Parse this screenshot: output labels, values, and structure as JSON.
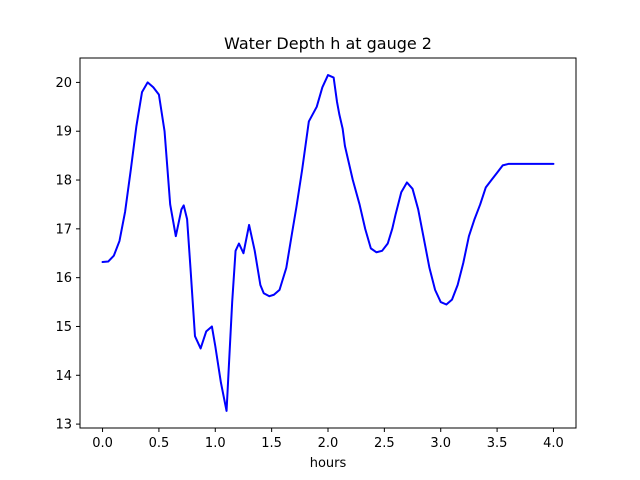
{
  "chart_data": {
    "type": "line",
    "title": "Water Depth h at gauge 2",
    "xlabel": "hours",
    "ylabel": "",
    "xlim": [
      -0.2,
      4.2
    ],
    "ylim": [
      12.92,
      20.5
    ],
    "xticks": [
      0.0,
      0.5,
      1.0,
      1.5,
      2.0,
      2.5,
      3.0,
      3.5,
      4.0
    ],
    "xtick_labels": [
      "0.0",
      "0.5",
      "1.0",
      "1.5",
      "2.0",
      "2.5",
      "3.0",
      "3.5",
      "4.0"
    ],
    "yticks": [
      13,
      14,
      15,
      16,
      17,
      18,
      19,
      20
    ],
    "ytick_labels": [
      "13",
      "14",
      "15",
      "16",
      "17",
      "18",
      "19",
      "20"
    ],
    "grid": false,
    "series": [
      {
        "color": "#0000ff",
        "x": [
          0.0,
          0.05,
          0.1,
          0.15,
          0.2,
          0.25,
          0.3,
          0.35,
          0.4,
          0.45,
          0.5,
          0.55,
          0.6,
          0.65,
          0.7,
          0.72,
          0.75,
          0.78,
          0.82,
          0.87,
          0.92,
          0.97,
          1.0,
          1.05,
          1.1,
          1.15,
          1.18,
          1.21,
          1.25,
          1.3,
          1.35,
          1.4,
          1.43,
          1.48,
          1.52,
          1.57,
          1.63,
          1.68,
          1.72,
          1.77,
          1.83,
          1.9,
          1.95,
          2.0,
          2.05,
          2.08,
          2.1,
          2.13,
          2.15,
          2.18,
          2.22,
          2.28,
          2.33,
          2.38,
          2.43,
          2.48,
          2.53,
          2.57,
          2.6,
          2.65,
          2.7,
          2.75,
          2.8,
          2.85,
          2.9,
          2.95,
          3.0,
          3.05,
          3.1,
          3.15,
          3.2,
          3.25,
          3.3,
          3.35,
          3.4,
          3.45,
          3.5,
          3.55,
          3.6,
          3.65,
          3.7,
          3.75,
          3.8,
          3.85,
          3.9,
          3.95,
          4.0
        ],
        "y": [
          16.32,
          16.33,
          16.45,
          16.75,
          17.35,
          18.2,
          19.1,
          19.8,
          20.0,
          19.9,
          19.75,
          19.0,
          17.5,
          16.85,
          17.4,
          17.48,
          17.2,
          16.2,
          14.8,
          14.55,
          14.9,
          15.0,
          14.6,
          13.85,
          13.27,
          15.5,
          16.55,
          16.7,
          16.5,
          17.08,
          16.55,
          15.85,
          15.68,
          15.62,
          15.65,
          15.75,
          16.2,
          16.9,
          17.45,
          18.2,
          19.2,
          19.5,
          19.9,
          20.15,
          20.1,
          19.6,
          19.35,
          19.05,
          18.7,
          18.4,
          18.0,
          17.5,
          17.0,
          16.6,
          16.52,
          16.55,
          16.7,
          17.0,
          17.3,
          17.75,
          17.95,
          17.82,
          17.4,
          16.8,
          16.2,
          15.75,
          15.5,
          15.45,
          15.55,
          15.85,
          16.3,
          16.85,
          17.2,
          17.5,
          17.85,
          18.0,
          18.15,
          18.3,
          18.33,
          18.33,
          18.33,
          18.33,
          18.33,
          18.33,
          18.33,
          18.33,
          18.33
        ]
      }
    ]
  }
}
